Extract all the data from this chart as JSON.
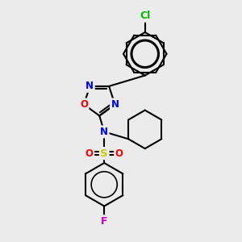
{
  "background_color": "#ebebeb",
  "bond_color": "#000000",
  "bond_width": 1.5,
  "atom_colors": {
    "N": "#0000ff",
    "O": "#ff0000",
    "S": "#cccc00",
    "Cl": "#00bb00",
    "F": "#cc00cc",
    "C": "#000000"
  },
  "font_size": 8.5,
  "figsize": [
    3.0,
    3.0
  ],
  "dpi": 100
}
